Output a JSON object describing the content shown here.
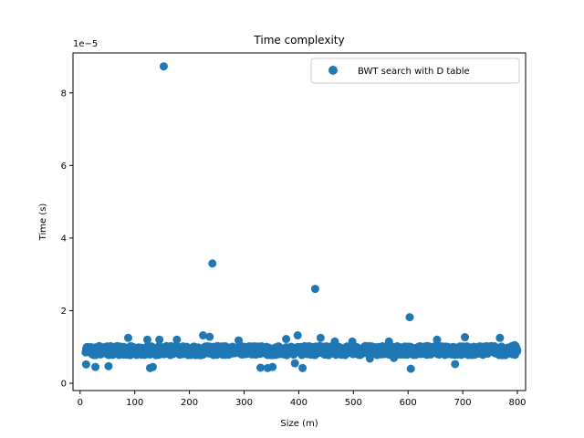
{
  "chart_data": {
    "type": "scatter",
    "title": "Time complexity",
    "xlabel": "Size (m)",
    "ylabel": "Time (s)",
    "offset_text": "1e−5",
    "y_scale_factor": 1e-05,
    "xlim": [
      -13,
      815
    ],
    "ylim": [
      -0.2,
      9.1
    ],
    "xticks": [
      0,
      100,
      200,
      300,
      400,
      500,
      600,
      700,
      800
    ],
    "yticks": [
      0,
      2,
      4,
      6,
      8
    ],
    "grid": false,
    "legend_position": "top-right",
    "series": [
      {
        "name": "BWT search with D table",
        "color": "#1f77b4",
        "note_values_in_units_of_1e-5_s": true,
        "points": []
      }
    ],
    "outliers": [
      {
        "x": 153,
        "y": 8.73
      },
      {
        "x": 242,
        "y": 3.3
      },
      {
        "x": 430,
        "y": 2.6
      },
      {
        "x": 603,
        "y": 1.82
      },
      {
        "x": 88,
        "y": 1.25
      },
      {
        "x": 123,
        "y": 1.2
      },
      {
        "x": 225,
        "y": 1.32
      },
      {
        "x": 237,
        "y": 1.28
      },
      {
        "x": 177,
        "y": 1.2
      },
      {
        "x": 290,
        "y": 1.18
      },
      {
        "x": 398,
        "y": 1.32
      },
      {
        "x": 377,
        "y": 1.22
      },
      {
        "x": 440,
        "y": 1.25
      },
      {
        "x": 466,
        "y": 1.15
      },
      {
        "x": 498,
        "y": 1.15
      },
      {
        "x": 565,
        "y": 1.15
      },
      {
        "x": 653,
        "y": 1.2
      },
      {
        "x": 704,
        "y": 1.27
      },
      {
        "x": 768,
        "y": 1.25
      },
      {
        "x": 795,
        "y": 1.05
      },
      {
        "x": 11,
        "y": 0.52
      },
      {
        "x": 28,
        "y": 0.45
      },
      {
        "x": 52,
        "y": 0.47
      },
      {
        "x": 128,
        "y": 0.42
      },
      {
        "x": 133,
        "y": 0.45
      },
      {
        "x": 330,
        "y": 0.43
      },
      {
        "x": 343,
        "y": 0.42
      },
      {
        "x": 352,
        "y": 0.45
      },
      {
        "x": 393,
        "y": 0.55
      },
      {
        "x": 407,
        "y": 0.42
      },
      {
        "x": 605,
        "y": 0.4
      },
      {
        "x": 686,
        "y": 0.53
      },
      {
        "x": 530,
        "y": 0.68
      },
      {
        "x": 574,
        "y": 0.7
      },
      {
        "x": 145,
        "y": 1.2
      }
    ]
  }
}
